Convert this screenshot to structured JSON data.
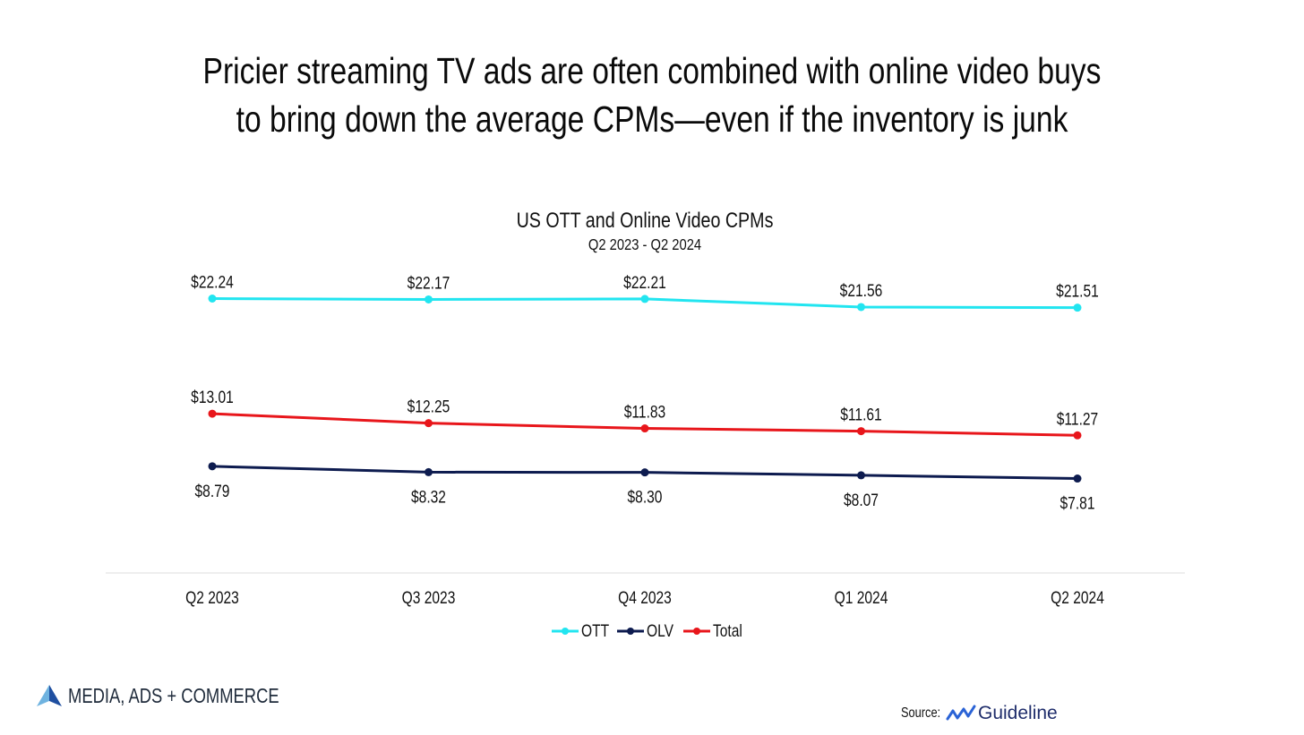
{
  "headline": {
    "line1": "Pricier streaming TV ads are often combined with online video buys",
    "line2": "to bring down the average CPMs—even if the inventory is junk"
  },
  "chart_data": {
    "type": "line",
    "title": "US OTT and Online Video CPMs",
    "subtitle": "Q2 2023 - Q2 2024",
    "categories": [
      "Q2 2023",
      "Q3 2023",
      "Q4 2023",
      "Q1 2024",
      "Q2 2024"
    ],
    "series": [
      {
        "name": "OTT",
        "color": "#22e5f0",
        "values": [
          22.24,
          22.17,
          22.21,
          21.56,
          21.51
        ],
        "labels": [
          "$22.24",
          "$22.17",
          "$22.21",
          "$21.56",
          "$21.51"
        ],
        "label_position": "above"
      },
      {
        "name": "OLV",
        "color": "#0d1b4f",
        "values": [
          8.79,
          8.32,
          8.3,
          8.07,
          7.81
        ],
        "labels": [
          "$8.79",
          "$8.32",
          "$8.30",
          "$8.07",
          "$7.81"
        ],
        "label_position": "below"
      },
      {
        "name": "Total",
        "color": "#e8161b",
        "values": [
          13.01,
          12.25,
          11.83,
          11.61,
          11.27
        ],
        "labels": [
          "$13.01",
          "$12.25",
          "$11.83",
          "$11.61",
          "$11.27"
        ],
        "label_position": "above"
      }
    ],
    "legend": [
      "OTT",
      "OLV",
      "Total"
    ],
    "legend_position": "bottom",
    "grid": false,
    "ylim": [
      0,
      30
    ]
  },
  "branding": {
    "text": "MEDIA, ADS + COMMERCE",
    "icon": "triangle-logo-icon"
  },
  "source": {
    "label": "Source:",
    "brand": "Guideline",
    "icon": "guideline-wave-icon"
  }
}
